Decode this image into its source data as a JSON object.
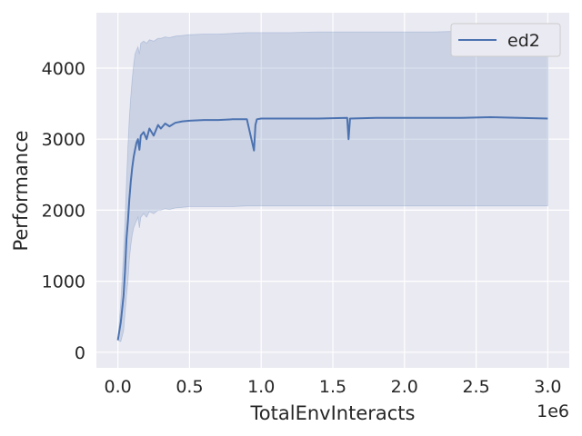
{
  "chart_data": {
    "type": "line",
    "xlabel": "TotalEnvInteracts",
    "ylabel": "Performance",
    "x_scale_label": "1e6",
    "xlim": [
      -0.15,
      3.15
    ],
    "ylim": [
      -220,
      4780
    ],
    "x_ticks": [
      0.0,
      0.5,
      1.0,
      1.5,
      2.0,
      2.5,
      3.0
    ],
    "x_tick_labels": [
      "0.0",
      "0.5",
      "1.0",
      "1.5",
      "2.0",
      "2.5",
      "3.0"
    ],
    "y_ticks": [
      0,
      1000,
      2000,
      3000,
      4000
    ],
    "y_tick_labels": [
      "0",
      "1000",
      "2000",
      "3000",
      "4000"
    ],
    "grid": true,
    "legend_position": "top-right",
    "colors": {
      "background": "#eaeaf2",
      "grid": "#ffffff",
      "line": "#4c72b0",
      "band": "#4c72b0"
    },
    "series": [
      {
        "name": "ed2",
        "x": [
          0.0,
          0.02,
          0.04,
          0.05,
          0.06,
          0.07,
          0.08,
          0.09,
          0.1,
          0.11,
          0.12,
          0.13,
          0.14,
          0.15,
          0.16,
          0.18,
          0.2,
          0.22,
          0.25,
          0.28,
          0.3,
          0.33,
          0.36,
          0.4,
          0.45,
          0.5,
          0.6,
          0.7,
          0.8,
          0.9,
          0.95,
          0.96,
          0.97,
          1.0,
          1.2,
          1.4,
          1.6,
          1.61,
          1.62,
          1.8,
          2.0,
          2.2,
          2.4,
          2.6,
          2.8,
          3.0
        ],
        "y": [
          170,
          420,
          800,
          1150,
          1600,
          1850,
          2150,
          2400,
          2600,
          2750,
          2850,
          2950,
          3000,
          2850,
          3050,
          3100,
          3000,
          3150,
          3050,
          3200,
          3150,
          3220,
          3180,
          3230,
          3250,
          3260,
          3270,
          3270,
          3280,
          3280,
          2840,
          3200,
          3280,
          3290,
          3290,
          3290,
          3300,
          3000,
          3290,
          3300,
          3300,
          3300,
          3300,
          3310,
          3300,
          3290
        ],
        "lower": [
          170,
          150,
          300,
          550,
          800,
          1000,
          1300,
          1500,
          1650,
          1750,
          1800,
          1850,
          1900,
          1750,
          1900,
          1950,
          1900,
          1980,
          1950,
          2000,
          2000,
          2020,
          2010,
          2030,
          2040,
          2050,
          2050,
          2050,
          2050,
          2060,
          2060,
          2060,
          2060,
          2060,
          2060,
          2060,
          2060,
          2060,
          2060,
          2060,
          2060,
          2060,
          2060,
          2060,
          2060,
          2060
        ],
        "upper": [
          170,
          700,
          1400,
          1850,
          2400,
          2900,
          3300,
          3600,
          3850,
          4050,
          4200,
          4250,
          4300,
          4200,
          4350,
          4380,
          4350,
          4400,
          4380,
          4420,
          4420,
          4440,
          4430,
          4450,
          4460,
          4470,
          4480,
          4480,
          4490,
          4500,
          4500,
          4500,
          4500,
          4500,
          4500,
          4510,
          4510,
          4510,
          4510,
          4510,
          4510,
          4510,
          4520,
          4520,
          4520,
          4520
        ]
      }
    ]
  }
}
